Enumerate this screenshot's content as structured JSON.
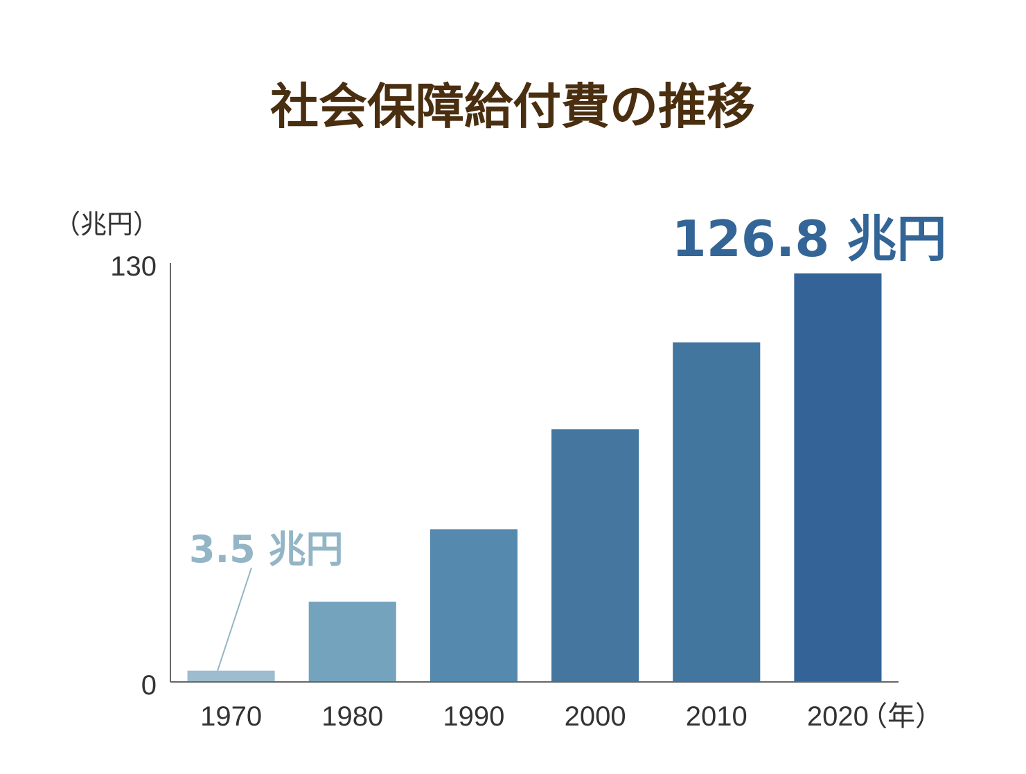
{
  "chart_data": {
    "type": "bar",
    "title": "社会保障給付費の推移",
    "ylabel": "（兆円）",
    "xlabel": "（年）",
    "ylim": [
      0,
      130
    ],
    "y_ticks": [
      "0",
      "130"
    ],
    "categories": [
      "1970",
      "1980",
      "1990",
      "2000",
      "2010",
      "2020"
    ],
    "values": [
      3.5,
      24.9,
      47.4,
      78.4,
      105.4,
      126.8
    ],
    "annotations": [
      {
        "category": "1970",
        "text": "3.5 兆円",
        "color": "#93b5c6"
      },
      {
        "category": "2020",
        "text": "126.8 兆円",
        "color": "#336596"
      }
    ],
    "colors": [
      "#9dbccd",
      "#74a3bd",
      "#5589ae",
      "#44769f",
      "#43769f",
      "#336397"
    ],
    "title_color": "#4a2e10",
    "grid": false
  }
}
